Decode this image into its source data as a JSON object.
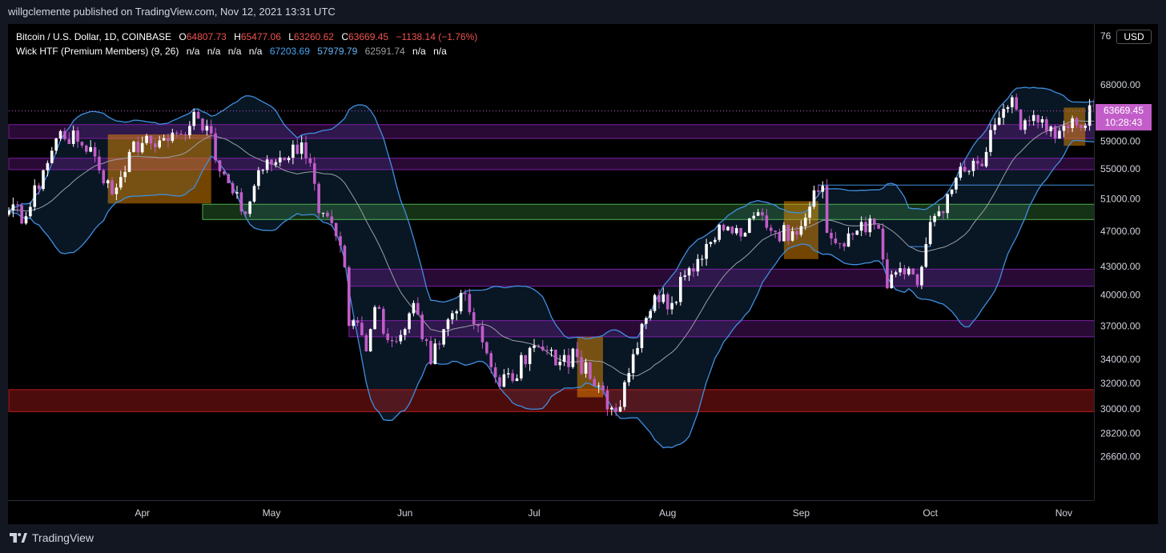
{
  "header": {
    "publisher": "willgclemente published on TradingView.com, Nov 12, 2021 13:31 UTC"
  },
  "legend": {
    "symbol": "Bitcoin / U.S. Dollar, 1D, COINBASE",
    "o_label": "O",
    "o_value": "64807.73",
    "h_label": "H",
    "h_value": "65477.06",
    "l_label": "L",
    "l_value": "63260.62",
    "c_label": "C",
    "c_value": "63669.45",
    "change": "−1138.14 (−1.76%)",
    "indicator": "Wick HTF (Premium Members) (9, 26)",
    "na1": "n/a",
    "na2": "n/a",
    "na3": "n/a",
    "na4": "n/a",
    "band_upper": "67203.69",
    "band_lower": "57979.79",
    "band_basis": "62591.74",
    "na5": "n/a",
    "na6": "n/a"
  },
  "price_axis": {
    "currency": "USD",
    "top_label_partial": "76",
    "current_price": "63669.45",
    "countdown": "10:28:43"
  },
  "footer": {
    "brand": "TradingView"
  },
  "colors": {
    "background": "#000000",
    "frame": "#131722",
    "up_candle": "#ffffff",
    "down_candle": "#c25dc9",
    "band_line": "#3f8fdf",
    "basis_line": "#9aa0a8",
    "purple_zone": "#7b1fa2",
    "green_zone": "#4caf50",
    "red_zone": "#b71c1c",
    "orange_zone": "#ff9800",
    "legend_values": "#ef5350",
    "upper_value": "#42a5f5",
    "lower_value": "#64b5f6",
    "basis_value": "#9e9e9e"
  },
  "chart_data": {
    "type": "candlestick",
    "title": "Bitcoin / U.S. Dollar, 1D, COINBASE",
    "y_axis": {
      "scale": "log",
      "ticks": [
        26600,
        28200,
        30000,
        32000,
        34000,
        37000,
        40000,
        43000,
        47000,
        51000,
        55000,
        59000,
        63669.45,
        68000
      ],
      "tick_labels": [
        "26600.00",
        "28200.00",
        "30000.00",
        "32000.00",
        "34000.00",
        "37000.00",
        "40000.00",
        "43000.00",
        "47000.00",
        "51000.00",
        "55000.00",
        "59000.00",
        "",
        "68000.00"
      ]
    },
    "x_axis": {
      "start": "2021-03-01",
      "end": "2021-11-11",
      "tick_labels": [
        "Apr",
        "May",
        "Jun",
        "Jul",
        "Aug",
        "Sep",
        "Oct",
        "Nov"
      ],
      "tick_dates": [
        "2021-04-01",
        "2021-05-01",
        "2021-06-01",
        "2021-07-01",
        "2021-08-01",
        "2021-09-01",
        "2021-10-01",
        "2021-11-01"
      ]
    },
    "close_anchors": [
      [
        "2021-03-01",
        49500
      ],
      [
        "2021-03-05",
        48800
      ],
      [
        "2021-03-09",
        54800
      ],
      [
        "2021-03-13",
        60500
      ],
      [
        "2021-03-17",
        58900
      ],
      [
        "2021-03-20",
        58100
      ],
      [
        "2021-03-25",
        51600
      ],
      [
        "2021-03-29",
        57400
      ],
      [
        "2021-04-01",
        58700
      ],
      [
        "2021-04-05",
        59100
      ],
      [
        "2021-04-10",
        60000
      ],
      [
        "2021-04-13",
        63500
      ],
      [
        "2021-04-16",
        61300
      ],
      [
        "2021-04-18",
        56200
      ],
      [
        "2021-04-22",
        51700
      ],
      [
        "2021-04-25",
        49100
      ],
      [
        "2021-04-28",
        54800
      ],
      [
        "2021-05-03",
        56600
      ],
      [
        "2021-05-08",
        58800
      ],
      [
        "2021-05-10",
        55800
      ],
      [
        "2021-05-12",
        49200
      ],
      [
        "2021-05-16",
        46400
      ],
      [
        "2021-05-18",
        42900
      ],
      [
        "2021-05-19",
        37000
      ],
      [
        "2021-05-21",
        37300
      ],
      [
        "2021-05-23",
        34700
      ],
      [
        "2021-05-25",
        38800
      ],
      [
        "2021-05-28",
        35700
      ],
      [
        "2021-06-01",
        36700
      ],
      [
        "2021-06-03",
        39200
      ],
      [
        "2021-06-07",
        33600
      ],
      [
        "2021-06-10",
        36700
      ],
      [
        "2021-06-14",
        40200
      ],
      [
        "2021-06-16",
        38300
      ],
      [
        "2021-06-19",
        35500
      ],
      [
        "2021-06-22",
        32500
      ],
      [
        "2021-06-26",
        32200
      ],
      [
        "2021-06-30",
        35000
      ],
      [
        "2021-07-03",
        34800
      ],
      [
        "2021-07-07",
        33800
      ],
      [
        "2021-07-11",
        34200
      ],
      [
        "2021-07-15",
        31800
      ],
      [
        "2021-07-20",
        29800
      ],
      [
        "2021-07-22",
        32100
      ],
      [
        "2021-07-26",
        37200
      ],
      [
        "2021-07-29",
        40000
      ],
      [
        "2021-08-02",
        39200
      ],
      [
        "2021-08-06",
        42800
      ],
      [
        "2021-08-10",
        45500
      ],
      [
        "2021-08-14",
        47100
      ],
      [
        "2021-08-19",
        46800
      ],
      [
        "2021-08-22",
        49300
      ],
      [
        "2021-08-26",
        46900
      ],
      [
        "2021-08-30",
        47000
      ],
      [
        "2021-09-03",
        50000
      ],
      [
        "2021-09-06",
        52700
      ],
      [
        "2021-09-07",
        46800
      ],
      [
        "2021-09-11",
        45200
      ],
      [
        "2021-09-15",
        48100
      ],
      [
        "2021-09-19",
        47300
      ],
      [
        "2021-09-21",
        40700
      ],
      [
        "2021-09-24",
        42800
      ],
      [
        "2021-09-28",
        41000
      ],
      [
        "2021-10-01",
        48100
      ],
      [
        "2021-10-04",
        49200
      ],
      [
        "2021-10-07",
        53800
      ],
      [
        "2021-10-10",
        54700
      ],
      [
        "2021-10-14",
        57400
      ],
      [
        "2021-10-16",
        61500
      ],
      [
        "2021-10-20",
        65900
      ],
      [
        "2021-10-22",
        60700
      ],
      [
        "2021-10-25",
        63000
      ],
      [
        "2021-10-28",
        60500
      ],
      [
        "2021-11-01",
        61300
      ],
      [
        "2021-11-05",
        61000
      ],
      [
        "2021-11-09",
        67500
      ],
      [
        "2021-11-11",
        63669.45
      ]
    ],
    "last_candle": {
      "date": "2021-11-11",
      "open": 64807.73,
      "high": 65477.06,
      "low": 63260.62,
      "close": 63669.45
    },
    "bands": {
      "period": 20,
      "indicator_params": "(9, 26)",
      "upper_last": 67203.69,
      "lower_last": 57979.79,
      "basis_last": 62591.74
    },
    "zones": [
      {
        "kind": "purple",
        "low": 59400,
        "high": 61500,
        "start": "2021-03-01",
        "end": "2021-11-16"
      },
      {
        "kind": "purple",
        "low": 54900,
        "high": 56500,
        "start": "2021-03-01",
        "end": "2021-11-16"
      },
      {
        "kind": "green",
        "low": 48400,
        "high": 50300,
        "start": "2021-04-15",
        "end": "2021-11-16"
      },
      {
        "kind": "purple",
        "low": 40900,
        "high": 42700,
        "start": "2021-05-19",
        "end": "2021-11-16"
      },
      {
        "kind": "purple",
        "low": 36000,
        "high": 37500,
        "start": "2021-05-19",
        "end": "2021-11-16"
      },
      {
        "kind": "red",
        "low": 29800,
        "high": 31500,
        "start": "2021-03-01",
        "end": "2021-11-16"
      }
    ],
    "highlights": [
      {
        "kind": "orange",
        "start": "2021-03-24",
        "end": "2021-04-17",
        "low": 50400,
        "high": 60000
      },
      {
        "kind": "orange",
        "start": "2021-07-11",
        "end": "2021-07-17",
        "low": 30900,
        "high": 36000
      },
      {
        "kind": "orange",
        "start": "2021-08-28",
        "end": "2021-09-05",
        "low": 43800,
        "high": 50700
      },
      {
        "kind": "orange",
        "start": "2021-11-01",
        "end": "2021-11-06",
        "low": 58300,
        "high": 64200
      }
    ],
    "h_lines": [
      {
        "value": 52800,
        "start": "2021-09-05",
        "end": "2021-11-11"
      },
      {
        "value": 45200,
        "start": "2021-09-26",
        "end": "2021-10-01"
      }
    ],
    "legend_position": "top-left",
    "grid": false
  }
}
